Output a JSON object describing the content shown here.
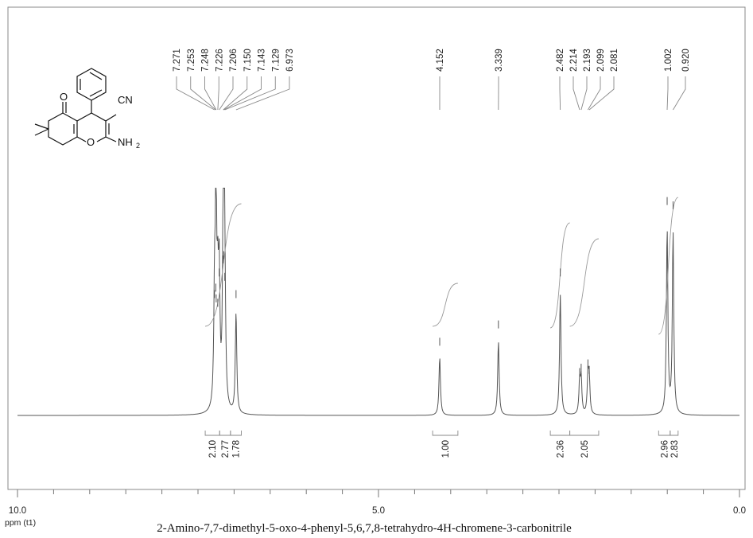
{
  "chart_data": {
    "type": "line",
    "title": "2-Amino-7,7-dimethyl-5-oxo-4-phenyl-5,6,7,8-tetrahydro-4H-chromene-3-carbonitrile",
    "xlabel": "ppm (t1)",
    "xlim": [
      10.0,
      0.0
    ],
    "x_ticks": [
      {
        "value": 10.0,
        "label": "10.0"
      },
      {
        "value": 5.0,
        "label": "5.0"
      },
      {
        "value": 0.0,
        "label": "0.0"
      }
    ],
    "peak_labels": [
      "7.271",
      "7.253",
      "7.248",
      "7.226",
      "7.206",
      "7.150",
      "7.143",
      "7.129",
      "6.973",
      "4.152",
      "3.339",
      "2.482",
      "2.214",
      "2.193",
      "2.099",
      "2.081",
      "1.002",
      "0.920"
    ],
    "integrals": [
      {
        "label": "2.10",
        "from": 7.4,
        "to": 7.2
      },
      {
        "label": "2.77",
        "from": 7.2,
        "to": 7.05
      },
      {
        "label": "1.78",
        "from": 7.05,
        "to": 6.9
      },
      {
        "label": "1.00",
        "from": 4.25,
        "to": 3.9
      },
      {
        "label": "2.36",
        "from": 2.62,
        "to": 2.35
      },
      {
        "label": "2.05",
        "from": 2.35,
        "to": 1.95
      },
      {
        "label": "2.96",
        "from": 1.12,
        "to": 0.96
      },
      {
        "label": "2.83",
        "from": 0.96,
        "to": 0.85
      }
    ],
    "peaks": [
      {
        "ppm": 7.271,
        "height": 0.52
      },
      {
        "ppm": 7.253,
        "height": 0.55
      },
      {
        "ppm": 7.248,
        "height": 0.5
      },
      {
        "ppm": 7.226,
        "height": 0.48
      },
      {
        "ppm": 7.206,
        "height": 0.62
      },
      {
        "ppm": 7.15,
        "height": 0.68
      },
      {
        "ppm": 7.143,
        "height": 0.7
      },
      {
        "ppm": 7.129,
        "height": 0.6
      },
      {
        "ppm": 6.973,
        "height": 0.52
      },
      {
        "ppm": 4.152,
        "height": 0.3
      },
      {
        "ppm": 3.339,
        "height": 0.38
      },
      {
        "ppm": 2.482,
        "height": 0.62
      },
      {
        "ppm": 2.214,
        "height": 0.16
      },
      {
        "ppm": 2.193,
        "height": 0.18
      },
      {
        "ppm": 2.099,
        "height": 0.2
      },
      {
        "ppm": 2.081,
        "height": 0.17
      },
      {
        "ppm": 1.002,
        "height": 0.95
      },
      {
        "ppm": 0.92,
        "height": 0.93
      }
    ]
  },
  "molecule": {
    "label_o_ketone": "O",
    "label_o_ring": "O",
    "label_cn": "CN",
    "label_nh": "NH",
    "label_nh_sub": "2"
  },
  "colors": {
    "line": "#555555",
    "text": "#222222",
    "frame": "#888888"
  }
}
